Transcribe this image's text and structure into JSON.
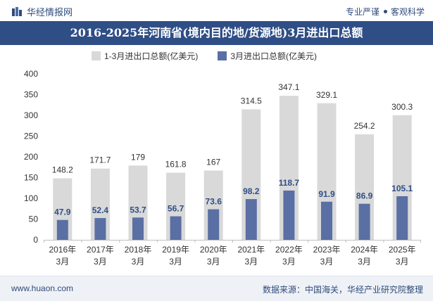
{
  "header": {
    "brand": "华经情报网",
    "slogan_left": "专业严谨",
    "slogan_right": "客观科学"
  },
  "footer": {
    "website": "www.huaon.com",
    "source": "数据来源：中国海关，华经产业研究院整理"
  },
  "colors": {
    "title_bg": "#2f4e86",
    "series_q1": "#d9d9d9",
    "series_mar": "#5a6fa3"
  },
  "chart_data": {
    "type": "bar",
    "title": "2016-2025年河南省(境内目的地/货源地)3月进出口总额",
    "categories": [
      "2016年3月",
      "2017年3月",
      "2018年3月",
      "2019年3月",
      "2020年3月",
      "2021年3月",
      "2022年3月",
      "2023年3月",
      "2024年3月",
      "2025年3月"
    ],
    "series": [
      {
        "name": "1-3月进出口总额(亿美元)",
        "values": [
          148.2,
          171.7,
          179,
          161.8,
          167,
          314.5,
          347.1,
          329.1,
          254.2,
          300.3
        ]
      },
      {
        "name": "3月进出口总额(亿美元)",
        "values": [
          47.9,
          52.4,
          53.7,
          56.7,
          73.6,
          98.2,
          118.7,
          91.9,
          86.9,
          105.1
        ]
      }
    ],
    "value_labels": [
      [
        "148.2",
        "171.7",
        "179",
        "161.8",
        "167",
        "314.5",
        "347.1",
        "329.1",
        "254.2",
        "300.3"
      ],
      [
        "47.9",
        "52.4",
        "53.7",
        "56.7",
        "73.6",
        "98.2",
        "118.7",
        "91.9",
        "86.9",
        "105.1"
      ]
    ],
    "ylim": [
      0,
      400
    ],
    "yticks": [
      "0",
      "50",
      "100",
      "150",
      "200",
      "250",
      "300",
      "350",
      "400"
    ],
    "legend_position": "top",
    "grid": false
  }
}
